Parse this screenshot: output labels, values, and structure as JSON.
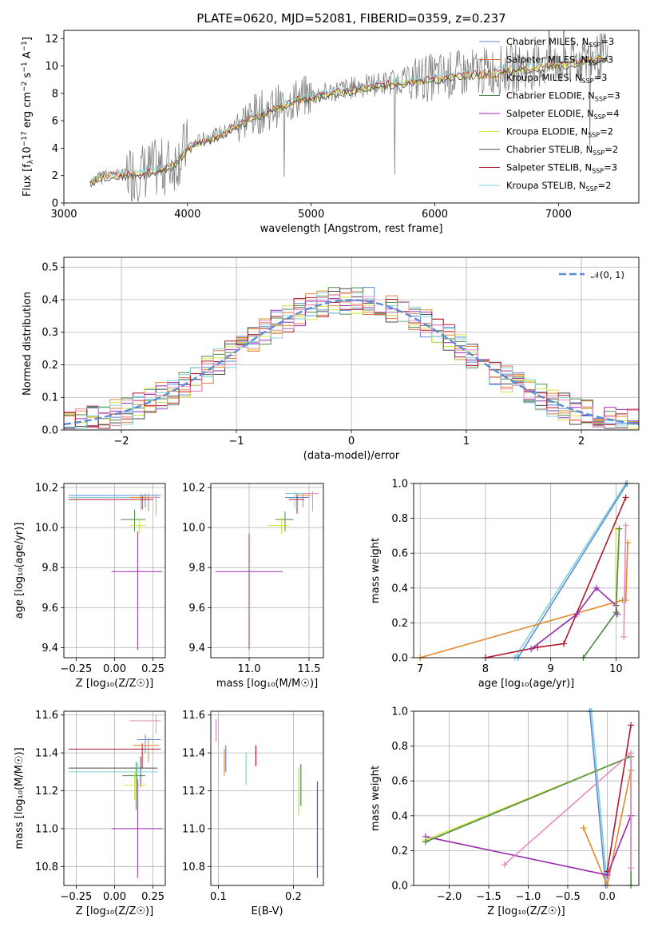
{
  "colors": {
    "Chabrier MILES": "#5b8bd6",
    "Salpeter MILES": "#e07040",
    "Kroupa MILES": "#e28a2b",
    "Chabrier ELODIE": "#4e8a4a",
    "Salpeter ELODIE": "#9a2ab0",
    "Kroupa ELODIE": "#d6e23a",
    "Chabrier STELIB": "#4a4a4a",
    "Salpeter STELIB": "#b2182b",
    "Kroupa STELIB": "#7fd2d8",
    "extra pink": "#e88cc0",
    "extra lime": "#b8e05a",
    "extra olive": "#6a9a3a",
    "gaussian": "#5b8bd6",
    "data": "#808080"
  },
  "chart_data": [
    {
      "type": "line",
      "title": "PLATE=0620, MJD=52081, FIBERID=0359, z=0.237",
      "xlabel": "wavelength [Angstrom, rest frame]",
      "ylabel": "Flux [f_λ 10^-17 erg cm^-2 s^-1 A^-1]",
      "ylabel_main": "Flux [f",
      "ylabel_sub": "λ",
      "ylabel_rest": "10",
      "ylabel_exp": "−17",
      "ylabel_tail": " erg cm",
      "ylabel_exp2": "−2",
      "ylabel_tail2": " s",
      "ylabel_exp3": "−1",
      "ylabel_tail3": " A",
      "ylabel_exp4": "−1",
      "ylabel_end": "]",
      "xlim": [
        3000,
        7650
      ],
      "ylim": [
        0,
        12.6
      ],
      "xticks": [
        3000,
        4000,
        5000,
        6000,
        7000
      ],
      "yticks": [
        0,
        2,
        4,
        6,
        8,
        10,
        12
      ],
      "legend_position": "right",
      "legend": [
        {
          "name": "Chabrier MILES, N",
          "sub": "SSP",
          "tail": "=3"
        },
        {
          "name": "Salpeter MILES, N",
          "sub": "SSP",
          "tail": "=3"
        },
        {
          "name": "Kroupa MILES, N",
          "sub": "SSP",
          "tail": "=3"
        },
        {
          "name": "Chabrier ELODIE, N",
          "sub": "SSP",
          "tail": "=3"
        },
        {
          "name": "Salpeter ELODIE, N",
          "sub": "SSP",
          "tail": "=4"
        },
        {
          "name": "Kroupa ELODIE, N",
          "sub": "SSP",
          "tail": "=2"
        },
        {
          "name": "Chabrier STELIB, N",
          "sub": "SSP",
          "tail": "=2"
        },
        {
          "name": "Salpeter STELIB, N",
          "sub": "SSP",
          "tail": "=3"
        },
        {
          "name": "Kroupa STELIB, N",
          "sub": "SSP",
          "tail": "=2"
        }
      ],
      "continuum": [
        [
          3210,
          1.6
        ],
        [
          3300,
          2.1
        ],
        [
          3500,
          2.2
        ],
        [
          3650,
          2.3
        ],
        [
          3800,
          2.6
        ],
        [
          3900,
          3.0
        ],
        [
          3950,
          3.6
        ],
        [
          4000,
          4.1
        ],
        [
          4100,
          4.6
        ],
        [
          4300,
          5.2
        ],
        [
          4500,
          6.3
        ],
        [
          4700,
          7.0
        ],
        [
          4900,
          7.7
        ],
        [
          5000,
          7.8
        ],
        [
          5200,
          8.2
        ],
        [
          5400,
          8.5
        ],
        [
          5700,
          8.9
        ],
        [
          6000,
          9.2
        ],
        [
          6300,
          9.5
        ],
        [
          6600,
          9.8
        ],
        [
          6800,
          10.0
        ],
        [
          7000,
          10.2
        ],
        [
          7200,
          10.5
        ],
        [
          7400,
          10.8
        ]
      ]
    },
    {
      "type": "bar",
      "xlabel": "(data-model)/error",
      "ylabel": "Normed distribution",
      "xlim": [
        -2.5,
        2.5
      ],
      "ylim": [
        0,
        0.53
      ],
      "xticks": [
        -2,
        -1,
        0,
        1,
        2
      ],
      "xtick_labels": [
        "−2",
        "−1",
        "0",
        "1",
        "2"
      ],
      "yticks": [
        0.0,
        0.1,
        0.2,
        0.3,
        0.4,
        0.5
      ],
      "ytick_labels": [
        "0.0",
        "0.1",
        "0.2",
        "0.3",
        "0.4",
        "0.5"
      ],
      "gaussian_label": "𝒩(0, 1)",
      "bin_width": 0.1,
      "bin_start": -2.5,
      "series": [
        {
          "values": [
            0.01,
            0.02,
            0.02,
            0.03,
            0.04,
            0.05,
            0.05,
            0.07,
            0.08,
            0.1,
            0.1,
            0.12,
            0.14,
            0.16,
            0.18,
            0.19,
            0.21,
            0.23,
            0.25,
            0.27,
            0.3,
            0.33,
            0.35,
            0.36,
            0.37,
            0.38,
            0.39,
            0.4,
            0.41,
            0.42,
            0.43,
            0.42,
            0.41,
            0.4,
            0.39,
            0.38,
            0.37,
            0.35,
            0.34,
            0.32,
            0.3,
            0.28,
            0.26,
            0.24,
            0.22,
            0.2,
            0.18,
            0.16,
            0.14,
            0.12
          ]
        },
        {
          "values": [
            0.02,
            0.02,
            0.03,
            0.04,
            0.05,
            0.04,
            0.06,
            0.08,
            0.07,
            0.1,
            0.12,
            0.11,
            0.15,
            0.17,
            0.16,
            0.2,
            0.22,
            0.24,
            0.23,
            0.28,
            0.31,
            0.34,
            0.33,
            0.38,
            0.36,
            0.4,
            0.37,
            0.44,
            0.4,
            0.46,
            0.41,
            0.43,
            0.38,
            0.42,
            0.36,
            0.37,
            0.33,
            0.35,
            0.31,
            0.3,
            0.27,
            0.28,
            0.24,
            0.22,
            0.21,
            0.18,
            0.17,
            0.15,
            0.12,
            0.11
          ]
        }
      ],
      "gaussian": {
        "mu": 0,
        "sigma": 1
      }
    },
    {
      "type": "scatter",
      "panel": "age-Z",
      "xlabel": "Z [log₁₀(Z/Z☉)]",
      "ylabel": "age  [log₁₀(age/yr)]",
      "xlim": [
        -0.33,
        0.33
      ],
      "ylim": [
        9.35,
        10.22
      ],
      "xticks": [
        -0.25,
        0.0,
        0.25
      ],
      "xtick_labels": [
        "−0.25",
        "0.00",
        "0.25"
      ],
      "yticks": [
        9.4,
        9.6,
        9.8,
        10.0,
        10.2
      ],
      "ytick_labels": [
        "9.4",
        "9.6",
        "9.8",
        "10.0",
        "10.2"
      ]
    },
    {
      "type": "scatter",
      "panel": "age-mass",
      "xlabel": "mass [log₁₀(M/M☉)]",
      "xlim": [
        10.68,
        11.62
      ],
      "ylim": [
        9.35,
        10.22
      ],
      "xticks": [
        11.0,
        11.5
      ],
      "xtick_labels": [
        "11.0",
        "11.5"
      ],
      "yticks": [
        9.4,
        9.6,
        9.8,
        10.0,
        10.2
      ],
      "ytick_labels": [
        "9.4",
        "9.6",
        "9.8",
        "10.0",
        "10.2"
      ]
    },
    {
      "type": "line",
      "panel": "massweight-age",
      "xlabel": "age  [log₁₀(age/yr)]",
      "ylabel": "mass weight",
      "xlim": [
        6.9,
        10.35
      ],
      "ylim": [
        0,
        1.0
      ],
      "xticks": [
        7,
        8,
        9,
        10
      ],
      "yticks": [
        0.0,
        0.2,
        0.4,
        0.6,
        0.8,
        1.0
      ],
      "ytick_labels": [
        "0.0",
        "0.2",
        "0.4",
        "0.6",
        "0.8",
        "1.0"
      ]
    },
    {
      "type": "scatter",
      "panel": "mass-Z",
      "xlabel": "Z [log₁₀(Z/Z☉)]",
      "ylabel": "mass [log₁₀(M/M☉)]",
      "xlim": [
        -0.33,
        0.33
      ],
      "ylim": [
        10.7,
        11.62
      ],
      "xticks": [
        -0.25,
        0.0,
        0.25
      ],
      "xtick_labels": [
        "−0.25",
        "0.00",
        "0.25"
      ],
      "yticks": [
        10.8,
        11.0,
        11.2,
        11.4,
        11.6
      ],
      "ytick_labels": [
        "10.8",
        "11.0",
        "11.2",
        "11.4",
        "11.6"
      ]
    },
    {
      "type": "scatter",
      "panel": "mass-EBV",
      "xlabel": "E(B-V)",
      "xlim": [
        0.09,
        0.24
      ],
      "ylim": [
        10.7,
        11.62
      ],
      "xticks": [
        0.1,
        0.2
      ],
      "xtick_labels": [
        "0.1",
        "0.2"
      ],
      "yticks": [
        10.8,
        11.0,
        11.2,
        11.4,
        11.6
      ],
      "ytick_labels": [
        "10.8",
        "11.0",
        "11.2",
        "11.4",
        "11.6"
      ]
    },
    {
      "type": "line",
      "panel": "massweight-Z",
      "xlabel": "Z [log₁₀(Z/Z☉)]",
      "ylabel": "mass weight",
      "xlim": [
        -2.45,
        0.4
      ],
      "ylim": [
        0,
        1.0
      ],
      "xticks": [
        -2.0,
        -1.5,
        -1.0,
        -0.5,
        0.0
      ],
      "xtick_labels": [
        "−2.0",
        "−1.5",
        "−1.0",
        "−0.5",
        "0.0"
      ],
      "yticks": [
        0.0,
        0.2,
        0.4,
        0.6,
        0.8,
        1.0
      ],
      "ytick_labels": [
        "0.0",
        "0.2",
        "0.4",
        "0.6",
        "0.8",
        "1.0"
      ]
    }
  ]
}
